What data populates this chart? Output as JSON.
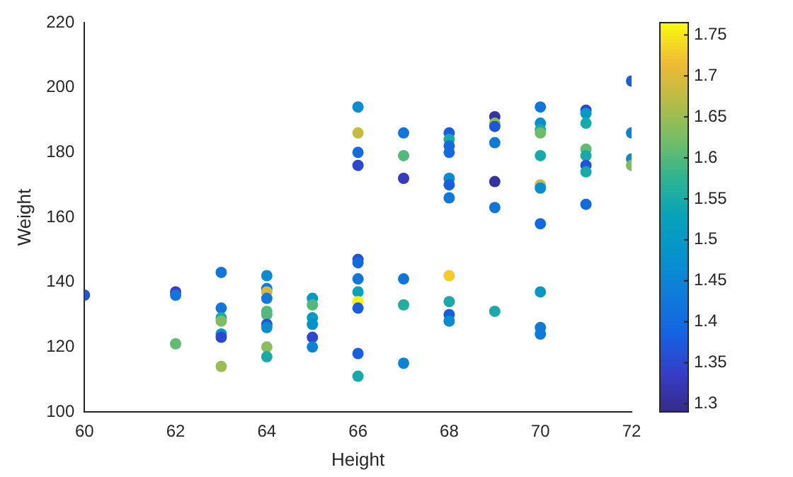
{
  "chart_data": {
    "type": "scatter",
    "xlabel": "Height",
    "ylabel": "Weight",
    "xlim": [
      60,
      72
    ],
    "xticks": [
      60,
      62,
      64,
      66,
      68,
      70,
      72
    ],
    "ylim": [
      100,
      220
    ],
    "yticks": [
      100,
      120,
      140,
      160,
      180,
      200,
      220
    ],
    "grid": false,
    "legend": false,
    "marker": "circle",
    "clim": [
      1.29,
      1.765
    ],
    "cticks": [
      1.3,
      1.35,
      1.4,
      1.45,
      1.5,
      1.55,
      1.6,
      1.65,
      1.7,
      1.75
    ],
    "series": [
      {
        "x": [
          60,
          62,
          62,
          62,
          63,
          63,
          63,
          63,
          63,
          63,
          63,
          64,
          64,
          64,
          64,
          64,
          64,
          64,
          64,
          64,
          64,
          65,
          65,
          65,
          65,
          65,
          65,
          66,
          66,
          66,
          66,
          66,
          66,
          66,
          66,
          66,
          66,
          66,
          66,
          67,
          67,
          67,
          67,
          67,
          67,
          68,
          68,
          68,
          68,
          68,
          68,
          68,
          68,
          68,
          68,
          68,
          69,
          69,
          69,
          69,
          69,
          69,
          69,
          70,
          70,
          70,
          70,
          70,
          70,
          70,
          70,
          70,
          70,
          70,
          71,
          71,
          71,
          71,
          71,
          71,
          71,
          71,
          72,
          72,
          72,
          72
        ],
        "values": [
          136,
          137,
          136,
          121,
          143,
          132,
          129,
          128,
          124,
          123,
          114,
          142,
          138,
          137,
          135,
          131,
          130,
          127,
          126,
          120,
          117,
          135,
          133,
          129,
          127,
          123,
          120,
          147,
          146,
          141,
          137,
          134,
          132,
          118,
          111,
          194,
          186,
          180,
          176,
          186,
          179,
          172,
          141,
          133,
          115,
          186,
          184,
          182,
          180,
          172,
          170,
          166,
          142,
          134,
          130,
          128,
          191,
          189,
          188,
          183,
          171,
          163,
          131,
          194,
          189,
          187,
          186,
          179,
          170,
          169,
          158,
          137,
          126,
          124,
          193,
          192,
          189,
          181,
          179,
          176,
          174,
          164,
          202,
          186,
          178,
          176
        ],
        "cvalues": [
          1.37,
          1.34,
          1.42,
          1.61,
          1.42,
          1.42,
          1.55,
          1.63,
          1.48,
          1.35,
          1.65,
          1.47,
          1.43,
          1.69,
          1.43,
          1.6,
          1.6,
          1.37,
          1.47,
          1.64,
          1.55,
          1.5,
          1.6,
          1.5,
          1.48,
          1.35,
          1.45,
          1.36,
          1.4,
          1.42,
          1.53,
          1.76,
          1.38,
          1.38,
          1.55,
          1.47,
          1.68,
          1.4,
          1.35,
          1.42,
          1.6,
          1.33,
          1.42,
          1.56,
          1.45,
          1.38,
          1.55,
          1.4,
          1.4,
          1.47,
          1.38,
          1.43,
          1.73,
          1.55,
          1.38,
          1.47,
          1.31,
          1.64,
          1.37,
          1.43,
          1.31,
          1.42,
          1.55,
          1.42,
          1.47,
          1.55,
          1.62,
          1.55,
          1.68,
          1.47,
          1.4,
          1.5,
          1.43,
          1.43,
          1.35,
          1.5,
          1.55,
          1.61,
          1.55,
          1.37,
          1.55,
          1.4,
          1.38,
          1.45,
          1.47,
          1.63
        ]
      }
    ]
  }
}
